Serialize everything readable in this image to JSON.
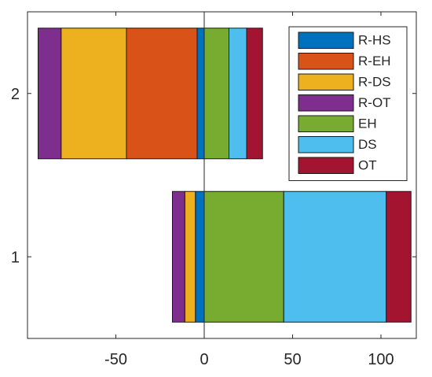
{
  "chart_data": {
    "type": "bar",
    "orientation": "horizontal",
    "stacked": true,
    "diverging": true,
    "categories": [
      "1",
      "2"
    ],
    "xlim": [
      -100,
      120
    ],
    "ylim": [
      0.5,
      2.5
    ],
    "xticks": [
      -50,
      0,
      50,
      100
    ],
    "yticks": [
      1,
      2
    ],
    "grid": false,
    "zero_line": true,
    "legend_position": "top-right",
    "series": [
      {
        "name": "R-HS",
        "color": "#0072BD",
        "side": "negative",
        "values": [
          5,
          4
        ]
      },
      {
        "name": "R-EH",
        "color": "#D95319",
        "side": "negative",
        "values": [
          0,
          40
        ]
      },
      {
        "name": "R-DS",
        "color": "#EDB120",
        "side": "negative",
        "values": [
          6,
          37
        ]
      },
      {
        "name": "R-OT",
        "color": "#7E2F8E",
        "side": "negative",
        "values": [
          7,
          13
        ]
      },
      {
        "name": "EH",
        "color": "#77AC30",
        "side": "positive",
        "values": [
          45,
          14
        ]
      },
      {
        "name": "DS",
        "color": "#4DBEEE",
        "side": "positive",
        "values": [
          58,
          10
        ]
      },
      {
        "name": "OT",
        "color": "#A2142F",
        "side": "positive",
        "values": [
          14,
          9
        ]
      }
    ]
  }
}
